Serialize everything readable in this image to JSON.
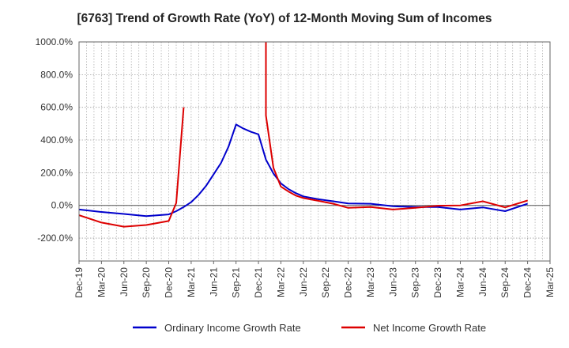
{
  "chart_data": {
    "type": "line",
    "title": "[6763]  Trend of Growth Rate (YoY) of 12-Month Moving Sum of Incomes",
    "xlabel": "",
    "ylabel": "",
    "x_start": "Dec-19",
    "x_ticks": [
      "Dec-19",
      "Mar-20",
      "Jun-20",
      "Sep-20",
      "Dec-20",
      "Mar-21",
      "Jun-21",
      "Sep-21",
      "Dec-21",
      "Mar-22",
      "Jun-22",
      "Sep-22",
      "Dec-22",
      "Mar-23",
      "Jun-23",
      "Sep-23",
      "Dec-23",
      "Mar-24",
      "Jun-24",
      "Sep-24",
      "Dec-24",
      "Mar-25"
    ],
    "ylim": [
      -340,
      1000
    ],
    "y_ticks": [
      -200,
      0,
      200,
      400,
      600,
      800,
      1000
    ],
    "y_tick_labels": [
      "-200.0%",
      "0.0%",
      "200.0%",
      "400.0%",
      "600.0%",
      "800.0%",
      "1000.0%"
    ],
    "grid": true,
    "legend_position": "bottom",
    "series": [
      {
        "name": "Ordinary Income Growth Rate",
        "color": "#0000cc",
        "points": [
          {
            "x": "Dec-19",
            "y": -25
          },
          {
            "x": "Mar-20",
            "y": -40
          },
          {
            "x": "Jun-20",
            "y": -52
          },
          {
            "x": "Sep-20",
            "y": -65
          },
          {
            "x": "Dec-20",
            "y": -55
          },
          {
            "x": "Jan-21",
            "y": -35
          },
          {
            "x": "Feb-21",
            "y": -10
          },
          {
            "x": "Mar-21",
            "y": 20
          },
          {
            "x": "Apr-21",
            "y": 65
          },
          {
            "x": "May-21",
            "y": 120
          },
          {
            "x": "Jun-21",
            "y": 190
          },
          {
            "x": "Jul-21",
            "y": 260
          },
          {
            "x": "Aug-21",
            "y": 360
          },
          {
            "x": "Sep-21",
            "y": 495
          },
          {
            "x": "Oct-21",
            "y": 470
          },
          {
            "x": "Nov-21",
            "y": 450
          },
          {
            "x": "Dec-21",
            "y": 435
          },
          {
            "x": "Jan-22",
            "y": 280
          },
          {
            "x": "Feb-22",
            "y": 195
          },
          {
            "x": "Mar-22",
            "y": 135
          },
          {
            "x": "Apr-22",
            "y": 100
          },
          {
            "x": "May-22",
            "y": 75
          },
          {
            "x": "Jun-22",
            "y": 55
          },
          {
            "x": "Aug-22",
            "y": 38
          },
          {
            "x": "Oct-22",
            "y": 25
          },
          {
            "x": "Dec-22",
            "y": 12
          },
          {
            "x": "Mar-23",
            "y": 10
          },
          {
            "x": "Jun-23",
            "y": -5
          },
          {
            "x": "Sep-23",
            "y": -10
          },
          {
            "x": "Dec-23",
            "y": -10
          },
          {
            "x": "Mar-24",
            "y": -25
          },
          {
            "x": "Jun-24",
            "y": -12
          },
          {
            "x": "Sep-24",
            "y": -35
          },
          {
            "x": "Dec-24",
            "y": 10
          }
        ]
      },
      {
        "name": "Net Income Growth Rate",
        "color": "#dd0000",
        "segments": [
          [
            {
              "x": "Dec-19",
              "y": -60
            },
            {
              "x": "Mar-20",
              "y": -105
            },
            {
              "x": "Jun-20",
              "y": -130
            },
            {
              "x": "Sep-20",
              "y": -120
            },
            {
              "x": "Dec-20",
              "y": -95
            },
            {
              "x": "Jan-21",
              "y": 15
            },
            {
              "x": "Feb-21",
              "y": 600
            }
          ],
          [
            {
              "x": "Jan-22",
              "y": 1000
            },
            {
              "x": "Jan-22",
              "y": 550
            },
            {
              "x": "Feb-22",
              "y": 230
            },
            {
              "x": "Mar-22",
              "y": 115
            },
            {
              "x": "Apr-22",
              "y": 85
            },
            {
              "x": "May-22",
              "y": 60
            },
            {
              "x": "Jun-22",
              "y": 45
            },
            {
              "x": "Aug-22",
              "y": 28
            },
            {
              "x": "Oct-22",
              "y": 10
            },
            {
              "x": "Dec-22",
              "y": -15
            },
            {
              "x": "Mar-23",
              "y": -10
            },
            {
              "x": "Jun-23",
              "y": -25
            },
            {
              "x": "Sep-23",
              "y": -15
            },
            {
              "x": "Dec-23",
              "y": -2
            },
            {
              "x": "Mar-24",
              "y": 0
            },
            {
              "x": "Jun-24",
              "y": 25
            },
            {
              "x": "Sep-24",
              "y": -12
            },
            {
              "x": "Dec-24",
              "y": 30
            }
          ]
        ]
      }
    ]
  }
}
